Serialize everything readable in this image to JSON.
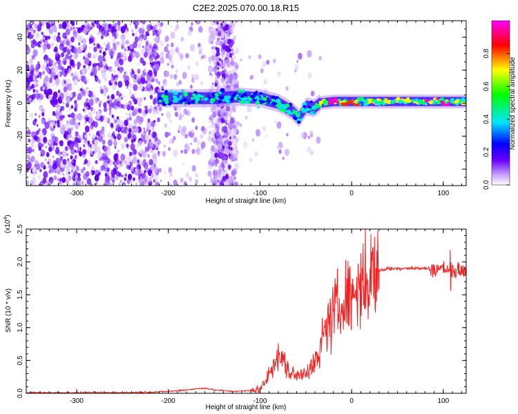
{
  "title": "C2E2.2025.070.00.18.R15",
  "chart_data": [
    {
      "type": "heatmap",
      "title": "C2E2.2025.070.00.18.R15",
      "xlabel": "Height of straight line (km)",
      "ylabel": "Frequency (Hz)",
      "xlim": [
        -355,
        125
      ],
      "ylim": [
        -50,
        50
      ],
      "x_ticks": [
        -300,
        -200,
        -100,
        0,
        100
      ],
      "y_ticks": [
        -40,
        -20,
        0,
        20,
        40
      ],
      "colorbar": {
        "label": "Normalized spectral amplitude",
        "range": [
          0.0,
          1.0
        ],
        "ticks": [
          0.0,
          0.2,
          0.4,
          0.6,
          0.8
        ],
        "tick_labels": [
          "0.0",
          "0.2",
          "0.4",
          "0.6",
          "0.8"
        ],
        "colormap": [
          "#ffffff",
          "#6a00ff",
          "#0000ff",
          "#00ffff",
          "#00ff00",
          "#ffff00",
          "#ff0000",
          "#ff00ff"
        ]
      },
      "ridge": {
        "x": [
          -210,
          -180,
          -150,
          -125,
          -100,
          -80,
          -65,
          -58,
          -50,
          -42,
          -35,
          -20,
          0,
          30,
          60,
          90,
          125
        ],
        "y": [
          3,
          3,
          3,
          4,
          3,
          0,
          -5,
          -9,
          -2,
          -3,
          0,
          1,
          1,
          1,
          1,
          1,
          1
        ]
      }
    },
    {
      "type": "line",
      "xlabel": "Height of straight line (km)",
      "ylabel": "SNR (10 * v/v)",
      "y_scale_note": "(x10",
      "y_scale_exp": "4",
      "xlim": [
        -355,
        125
      ],
      "ylim": [
        0,
        2.5
      ],
      "x_ticks": [
        -300,
        -200,
        -100,
        0,
        100
      ],
      "y_ticks": [
        0.0,
        0.5,
        1.0,
        1.5,
        2.0,
        2.5
      ],
      "y_tick_labels": [
        "0.0",
        "0.5",
        "1.0",
        "1.5",
        "2.0",
        "2.5"
      ],
      "series": [
        {
          "color": "#ee2222",
          "x": [
            -355,
            -300,
            -250,
            -210,
            -190,
            -175,
            -160,
            -150,
            -130,
            -110,
            -100,
            -95,
            -90,
            -85,
            -80,
            -75,
            -70,
            -65,
            -60,
            -55,
            -50,
            -45,
            -40,
            -35,
            -30,
            -25,
            -20,
            -15,
            -10,
            -5,
            0,
            5,
            10,
            15,
            20,
            25,
            30,
            40,
            50,
            60,
            70,
            80,
            90,
            95,
            100,
            105,
            110,
            115,
            125
          ],
          "y": [
            0.01,
            0.01,
            0.01,
            0.02,
            0.04,
            0.06,
            0.08,
            0.05,
            0.03,
            0.04,
            0.07,
            0.15,
            0.3,
            0.45,
            0.55,
            0.5,
            0.35,
            0.3,
            0.25,
            0.3,
            0.35,
            0.4,
            0.45,
            0.6,
            0.9,
            1.0,
            1.2,
            1.3,
            1.35,
            1.45,
            1.5,
            1.58,
            1.65,
            1.72,
            1.78,
            1.83,
            1.87,
            1.9,
            1.9,
            1.91,
            1.9,
            1.9,
            1.9,
            1.88,
            1.92,
            1.87,
            1.9,
            1.86,
            1.88
          ]
        }
      ]
    }
  ]
}
